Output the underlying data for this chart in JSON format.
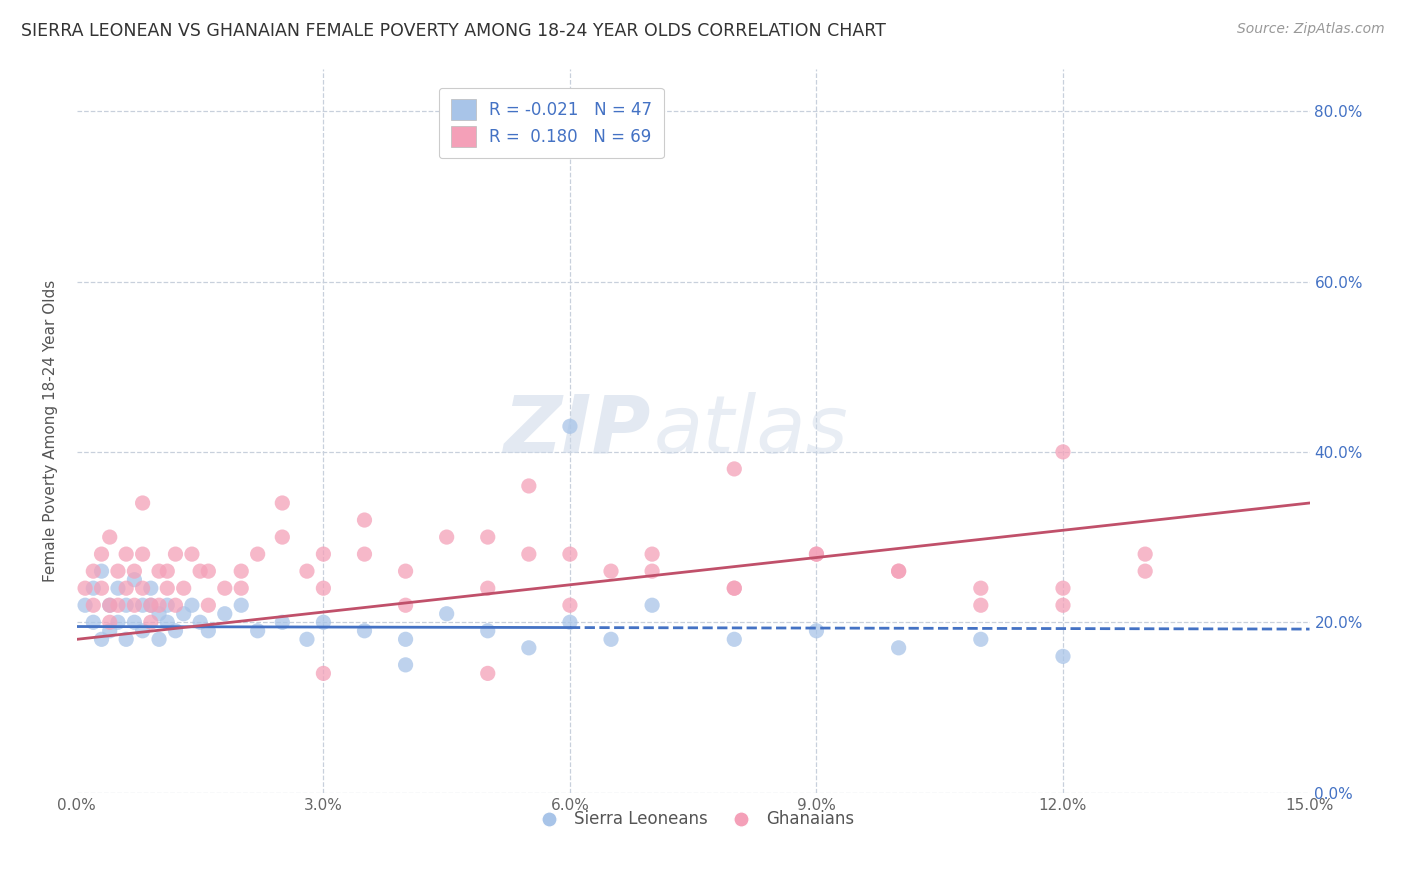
{
  "title": "SIERRA LEONEAN VS GHANAIAN FEMALE POVERTY AMONG 18-24 YEAR OLDS CORRELATION CHART",
  "source": "Source: ZipAtlas.com",
  "ylabel": "Female Poverty Among 18-24 Year Olds",
  "xlim": [
    0.0,
    0.15
  ],
  "ylim": [
    0.0,
    0.85
  ],
  "xticks": [
    0.0,
    0.03,
    0.06,
    0.09,
    0.12,
    0.15
  ],
  "xtick_labels": [
    "0.0%",
    "3.0%",
    "6.0%",
    "9.0%",
    "12.0%",
    "15.0%"
  ],
  "yticks": [
    0.0,
    0.2,
    0.4,
    0.6,
    0.8
  ],
  "ytick_labels": [
    "0.0%",
    "20.0%",
    "40.0%",
    "60.0%",
    "80.0%"
  ],
  "sierra_R": -0.021,
  "sierra_N": 47,
  "ghana_R": 0.18,
  "ghana_N": 69,
  "sierra_color": "#a8c4e8",
  "ghana_color": "#f4a0b8",
  "sierra_line_color": "#4472c4",
  "ghana_line_color": "#c0506a",
  "background_color": "#ffffff",
  "grid_color": "#c8d0dc",
  "watermark_zip": "ZIP",
  "watermark_atlas": "atlas",
  "sierra_x": [
    0.001,
    0.002,
    0.002,
    0.003,
    0.003,
    0.004,
    0.004,
    0.005,
    0.005,
    0.006,
    0.006,
    0.007,
    0.007,
    0.008,
    0.008,
    0.009,
    0.009,
    0.01,
    0.01,
    0.011,
    0.011,
    0.012,
    0.013,
    0.014,
    0.015,
    0.016,
    0.018,
    0.02,
    0.022,
    0.025,
    0.028,
    0.03,
    0.035,
    0.04,
    0.045,
    0.05,
    0.055,
    0.06,
    0.065,
    0.07,
    0.08,
    0.09,
    0.1,
    0.11,
    0.12,
    0.06,
    0.04
  ],
  "sierra_y": [
    0.22,
    0.24,
    0.2,
    0.26,
    0.18,
    0.22,
    0.19,
    0.24,
    0.2,
    0.22,
    0.18,
    0.25,
    0.2,
    0.22,
    0.19,
    0.22,
    0.24,
    0.21,
    0.18,
    0.22,
    0.2,
    0.19,
    0.21,
    0.22,
    0.2,
    0.19,
    0.21,
    0.22,
    0.19,
    0.2,
    0.18,
    0.2,
    0.19,
    0.18,
    0.21,
    0.19,
    0.17,
    0.2,
    0.18,
    0.22,
    0.18,
    0.19,
    0.17,
    0.18,
    0.16,
    0.43,
    0.15
  ],
  "ghana_x": [
    0.001,
    0.002,
    0.002,
    0.003,
    0.003,
    0.004,
    0.004,
    0.005,
    0.005,
    0.006,
    0.006,
    0.007,
    0.007,
    0.008,
    0.008,
    0.009,
    0.009,
    0.01,
    0.01,
    0.011,
    0.011,
    0.012,
    0.013,
    0.014,
    0.015,
    0.016,
    0.018,
    0.02,
    0.022,
    0.025,
    0.028,
    0.03,
    0.035,
    0.04,
    0.045,
    0.05,
    0.055,
    0.06,
    0.065,
    0.07,
    0.08,
    0.09,
    0.1,
    0.11,
    0.12,
    0.13,
    0.025,
    0.03,
    0.035,
    0.04,
    0.05,
    0.055,
    0.06,
    0.07,
    0.08,
    0.09,
    0.1,
    0.11,
    0.12,
    0.13,
    0.004,
    0.008,
    0.012,
    0.016,
    0.02,
    0.03,
    0.05,
    0.08,
    0.12
  ],
  "ghana_y": [
    0.24,
    0.22,
    0.26,
    0.28,
    0.24,
    0.22,
    0.2,
    0.26,
    0.22,
    0.28,
    0.24,
    0.26,
    0.22,
    0.24,
    0.28,
    0.22,
    0.2,
    0.26,
    0.22,
    0.24,
    0.26,
    0.22,
    0.24,
    0.28,
    0.26,
    0.22,
    0.24,
    0.26,
    0.28,
    0.3,
    0.26,
    0.24,
    0.28,
    0.22,
    0.3,
    0.24,
    0.28,
    0.22,
    0.26,
    0.28,
    0.24,
    0.28,
    0.26,
    0.22,
    0.24,
    0.26,
    0.34,
    0.28,
    0.32,
    0.26,
    0.3,
    0.36,
    0.28,
    0.26,
    0.24,
    0.28,
    0.26,
    0.24,
    0.22,
    0.28,
    0.3,
    0.34,
    0.28,
    0.26,
    0.24,
    0.14,
    0.14,
    0.38,
    0.4
  ]
}
